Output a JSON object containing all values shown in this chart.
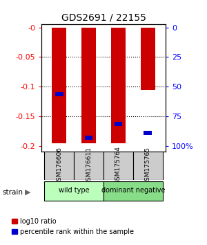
{
  "title": "GDS2691 / 22155",
  "samples": [
    "GSM176606",
    "GSM176611",
    "GSM175764",
    "GSM175765"
  ],
  "red_bars": [
    -0.195,
    -0.195,
    -0.195,
    -0.105
  ],
  "blue_markers": [
    -0.113,
    -0.186,
    -0.163,
    -0.178
  ],
  "ylim_left": [
    -0.21,
    0.005
  ],
  "yticks_left": [
    0,
    -0.05,
    -0.1,
    -0.15,
    -0.2
  ],
  "ytick_labels_left": [
    "-0",
    "-0.05",
    "-0.1",
    "-0.15",
    "-0.2"
  ],
  "ytick_labels_right": [
    "0",
    "25",
    "50",
    "75",
    "100%"
  ],
  "groups": [
    {
      "label": "wild type",
      "start": 0,
      "end": 2,
      "color": "#bbffbb"
    },
    {
      "label": "dominant negative",
      "start": 2,
      "end": 4,
      "color": "#88dd88"
    }
  ],
  "bar_color": "#cc0000",
  "blue_color": "#0000cc",
  "bar_width": 0.5,
  "strain_label": "strain",
  "legend_red": "log10 ratio",
  "legend_blue": "percentile rank within the sample",
  "bg_color": "#ffffff",
  "sample_box_color": "#cccccc"
}
